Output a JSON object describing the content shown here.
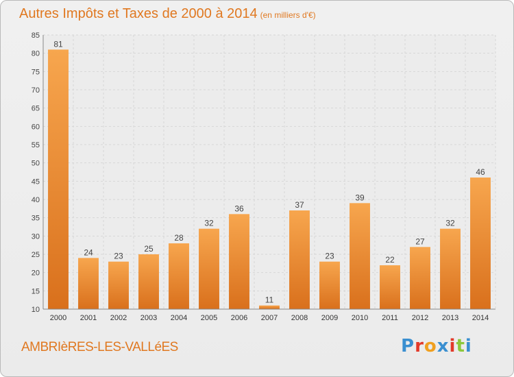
{
  "title": "Autres Impôts et Taxes de 2000 à 2014",
  "subtitle": "(en milliers d'€)",
  "commune": "AMBRIèRES-LES-VALLéES",
  "logo": {
    "letters": [
      "P",
      "r",
      "o",
      "x",
      "i",
      "t",
      "i"
    ],
    "colors": [
      "#3a8fd0",
      "#e23a2a",
      "#f0a020",
      "#3a8fd0",
      "#e23a2a",
      "#8cc83c",
      "#3a8fd0"
    ]
  },
  "colors": {
    "bar_light": "#f7a64e",
    "bar_dark": "#d9701c",
    "accent": "#e07820"
  },
  "chart_data": {
    "type": "bar",
    "categories": [
      "2000",
      "2001",
      "2002",
      "2003",
      "2004",
      "2005",
      "2006",
      "2007",
      "2008",
      "2009",
      "2010",
      "2011",
      "2012",
      "2013",
      "2014"
    ],
    "values": [
      81,
      24,
      23,
      25,
      28,
      32,
      36,
      11,
      37,
      23,
      39,
      22,
      27,
      32,
      46
    ],
    "ylim": [
      10,
      85
    ],
    "yticks": [
      10,
      15,
      20,
      25,
      30,
      35,
      40,
      45,
      50,
      55,
      60,
      65,
      70,
      75,
      80,
      85
    ],
    "grid": true,
    "xlabel": "",
    "ylabel": ""
  }
}
